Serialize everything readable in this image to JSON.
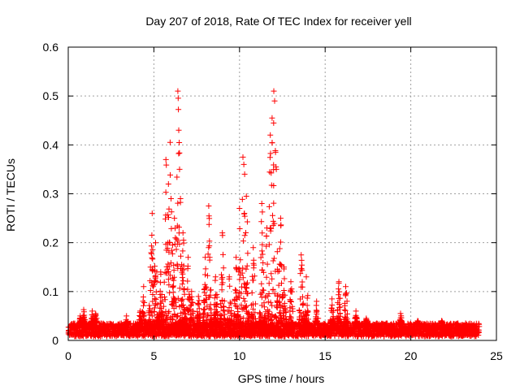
{
  "chart_data": {
    "type": "scatter",
    "title": "Day 207 of 2018, Rate Of TEC Index for receiver yell",
    "xlabel": "GPS time / hours",
    "ylabel": "ROTI / TECUs",
    "xlim": [
      0,
      25
    ],
    "ylim": [
      0,
      0.6
    ],
    "xticks": [
      0,
      5,
      10,
      15,
      20,
      25
    ],
    "yticks": [
      0,
      0.1,
      0.2,
      0.3,
      0.4,
      0.5,
      0.6
    ],
    "xtick_labels": [
      "0",
      "5",
      "10",
      "15",
      "20",
      "25"
    ],
    "ytick_labels": [
      "0",
      "0.1",
      "0.2",
      "0.3",
      "0.4",
      "0.5",
      "0.6"
    ],
    "grid": true,
    "marker": "+",
    "series": [
      {
        "name": "ROTI",
        "color": "#ff0000",
        "x_range": [
          0,
          24
        ],
        "baseline_range": [
          0.008,
          0.035
        ],
        "peaks": [
          {
            "x": 0.7,
            "y": 0.05
          },
          {
            "x": 0.9,
            "y": 0.063
          },
          {
            "x": 1.4,
            "y": 0.06
          },
          {
            "x": 1.6,
            "y": 0.055
          },
          {
            "x": 3.4,
            "y": 0.05
          },
          {
            "x": 4.2,
            "y": 0.06
          },
          {
            "x": 4.4,
            "y": 0.11
          },
          {
            "x": 4.8,
            "y": 0.15
          },
          {
            "x": 4.9,
            "y": 0.26
          },
          {
            "x": 5.1,
            "y": 0.2
          },
          {
            "x": 5.4,
            "y": 0.14
          },
          {
            "x": 5.7,
            "y": 0.37
          },
          {
            "x": 5.85,
            "y": 0.32
          },
          {
            "x": 5.95,
            "y": 0.405
          },
          {
            "x": 6.0,
            "y": 0.29
          },
          {
            "x": 6.2,
            "y": 0.25
          },
          {
            "x": 6.4,
            "y": 0.51
          },
          {
            "x": 6.45,
            "y": 0.43
          },
          {
            "x": 6.5,
            "y": 0.35
          },
          {
            "x": 6.55,
            "y": 0.29
          },
          {
            "x": 6.7,
            "y": 0.22
          },
          {
            "x": 7.0,
            "y": 0.17
          },
          {
            "x": 7.2,
            "y": 0.1
          },
          {
            "x": 7.6,
            "y": 0.09
          },
          {
            "x": 8.0,
            "y": 0.17
          },
          {
            "x": 8.2,
            "y": 0.275
          },
          {
            "x": 8.6,
            "y": 0.13
          },
          {
            "x": 9.0,
            "y": 0.22
          },
          {
            "x": 9.4,
            "y": 0.13
          },
          {
            "x": 9.8,
            "y": 0.17
          },
          {
            "x": 10.0,
            "y": 0.27
          },
          {
            "x": 10.2,
            "y": 0.375
          },
          {
            "x": 10.25,
            "y": 0.36
          },
          {
            "x": 10.3,
            "y": 0.34
          },
          {
            "x": 10.4,
            "y": 0.295
          },
          {
            "x": 10.8,
            "y": 0.19
          },
          {
            "x": 11.3,
            "y": 0.28
          },
          {
            "x": 11.6,
            "y": 0.23
          },
          {
            "x": 11.8,
            "y": 0.42
          },
          {
            "x": 11.9,
            "y": 0.455
          },
          {
            "x": 12.0,
            "y": 0.51
          },
          {
            "x": 12.05,
            "y": 0.49
          },
          {
            "x": 12.1,
            "y": 0.385
          },
          {
            "x": 12.15,
            "y": 0.35
          },
          {
            "x": 12.4,
            "y": 0.25
          },
          {
            "x": 12.6,
            "y": 0.15
          },
          {
            "x": 13.0,
            "y": 0.12
          },
          {
            "x": 13.6,
            "y": 0.175
          },
          {
            "x": 13.9,
            "y": 0.13
          },
          {
            "x": 14.5,
            "y": 0.08
          },
          {
            "x": 15.4,
            "y": 0.085
          },
          {
            "x": 15.8,
            "y": 0.12
          },
          {
            "x": 16.2,
            "y": 0.11
          },
          {
            "x": 16.8,
            "y": 0.06
          },
          {
            "x": 17.4,
            "y": 0.045
          },
          {
            "x": 18.6,
            "y": 0.035
          },
          {
            "x": 19.4,
            "y": 0.055
          },
          {
            "x": 20.4,
            "y": 0.04
          },
          {
            "x": 21.8,
            "y": 0.04
          },
          {
            "x": 23.2,
            "y": 0.035
          }
        ]
      }
    ]
  }
}
